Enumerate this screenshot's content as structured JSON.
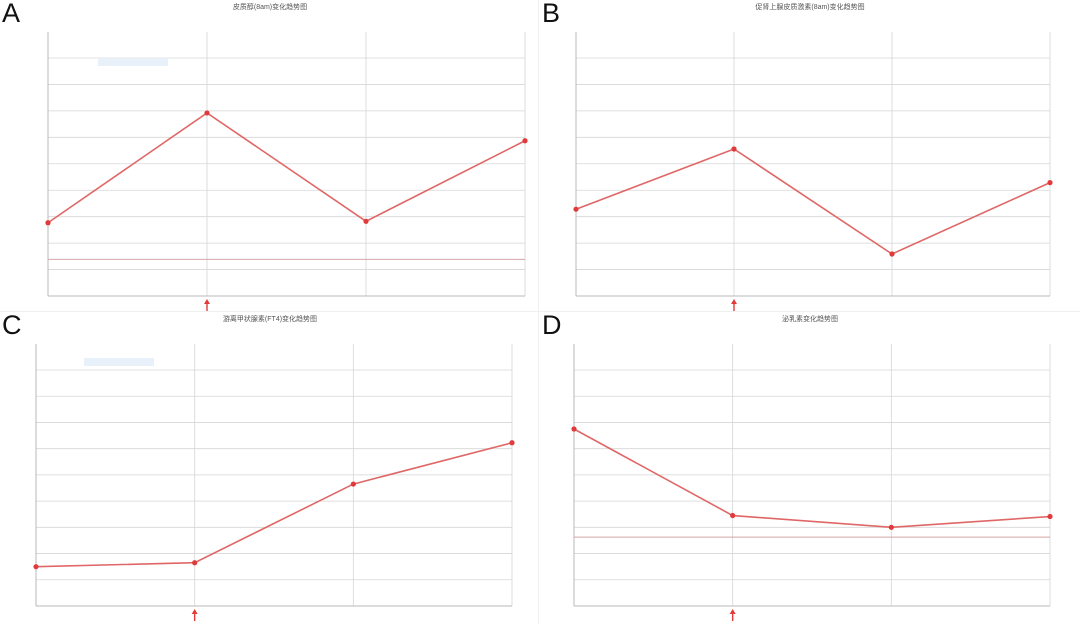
{
  "panels": [
    {
      "letter": "A",
      "title": "皮质醇(8am)变化趋势图"
    },
    {
      "letter": "B",
      "title": "促肾上腺皮质激素(8am)变化趋势图"
    },
    {
      "letter": "C",
      "title": "游离甲状腺素(FT4)变化趋势图"
    },
    {
      "letter": "D",
      "title": "泌乳素变化趋势图"
    }
  ],
  "chart_data": [
    {
      "type": "line",
      "title": "皮质醇(8am)变化趋势图",
      "ylim": [
        -50,
        275
      ],
      "series": [
        {
          "values": [
            50,
            200,
            52,
            162
          ]
        }
      ],
      "reference_line": 0,
      "marker_x_index": 1,
      "grid": true
    },
    {
      "type": "line",
      "title": "促肾上腺皮质激素(8am)变化趋势图",
      "ylim": [
        0,
        17
      ],
      "series": [
        {
          "values": [
            6.2,
            10.5,
            3.0,
            8.1
          ]
        }
      ],
      "marker_x_index": 1,
      "grid": true
    },
    {
      "type": "line",
      "title": "游离甲状腺素(FT4)变化趋势图",
      "ylim": [
        6,
        18
      ],
      "series": [
        {
          "values": [
            8.0,
            8.2,
            12.2,
            14.3
          ]
        }
      ],
      "marker_x_index": 1,
      "grid": true
    },
    {
      "type": "line",
      "title": "泌乳素变化趋势图",
      "ylim": [
        -40,
        200
      ],
      "series": [
        {
          "values": [
            140,
            52,
            40,
            51
          ]
        }
      ],
      "reference_line": 30,
      "marker_x_index": 1,
      "grid": true
    }
  ],
  "colors": {
    "line": "#e06767",
    "grid": "#d6d6d6",
    "axis": "#b8b8b8",
    "reference": "#d4a4a4",
    "marker": "#e03a3a",
    "legend_box": "#e8f1f9"
  }
}
